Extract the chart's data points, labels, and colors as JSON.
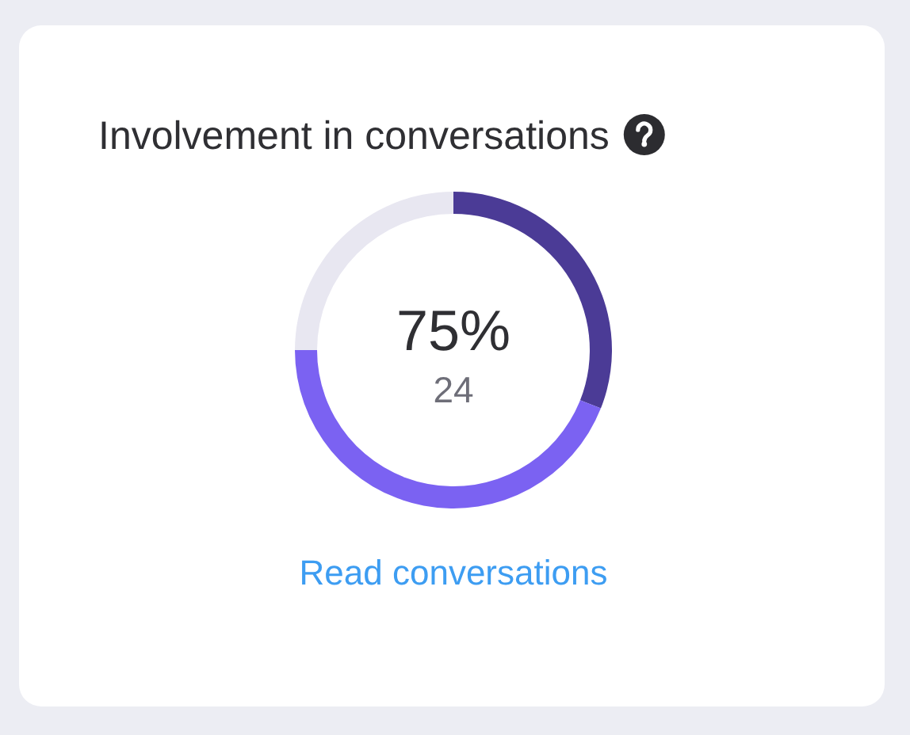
{
  "chart_data": {
    "type": "donut",
    "title": "Involvement in conversations",
    "categories": [
      null,
      null,
      null
    ],
    "values": [
      31,
      44,
      25
    ],
    "colors": [
      "#4b3b96",
      "#7b62f2",
      "#e8e7f1"
    ],
    "annotations": [
      "75%",
      "24",
      "Read conversations"
    ]
  }
}
